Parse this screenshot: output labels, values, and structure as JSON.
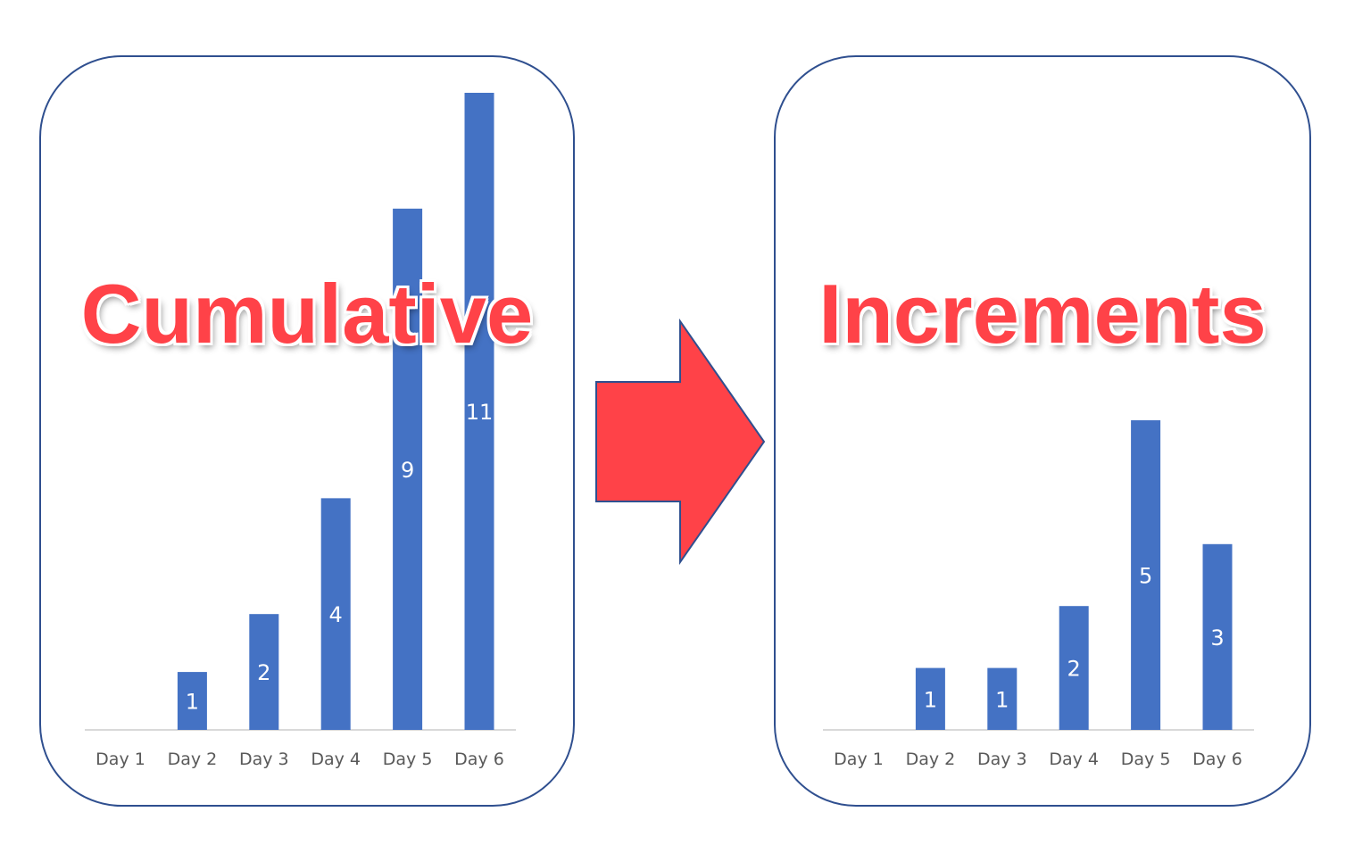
{
  "chart_data": [
    {
      "type": "bar",
      "title": "Cumulative",
      "categories": [
        "Day 1",
        "Day 2",
        "Day 3",
        "Day 4",
        "Day 5",
        "Day 6"
      ],
      "values": [
        0,
        1,
        2,
        4,
        9,
        11
      ],
      "data_labels": [
        "",
        "1",
        "2",
        "4",
        "9",
        "11"
      ],
      "ylim": [
        0,
        11
      ],
      "grid": false,
      "bar_color": "#4472C4"
    },
    {
      "type": "bar",
      "title": "Increments",
      "categories": [
        "Day 1",
        "Day 2",
        "Day 3",
        "Day 4",
        "Day 5",
        "Day 6"
      ],
      "values": [
        0,
        1,
        1,
        2,
        5,
        3
      ],
      "data_labels": [
        "",
        "1",
        "1",
        "2",
        "5",
        "3"
      ],
      "ylim": [
        0,
        5
      ],
      "grid": false,
      "bar_color": "#4472C4"
    }
  ],
  "colors": {
    "title_red": "#FF4248",
    "arrow_fill": "#FF4248",
    "arrow_stroke": "#2F4F8F",
    "panel_border": "#2F4F8F",
    "bar": "#4472C4"
  },
  "icons": {
    "arrow": "right-arrow-icon"
  }
}
